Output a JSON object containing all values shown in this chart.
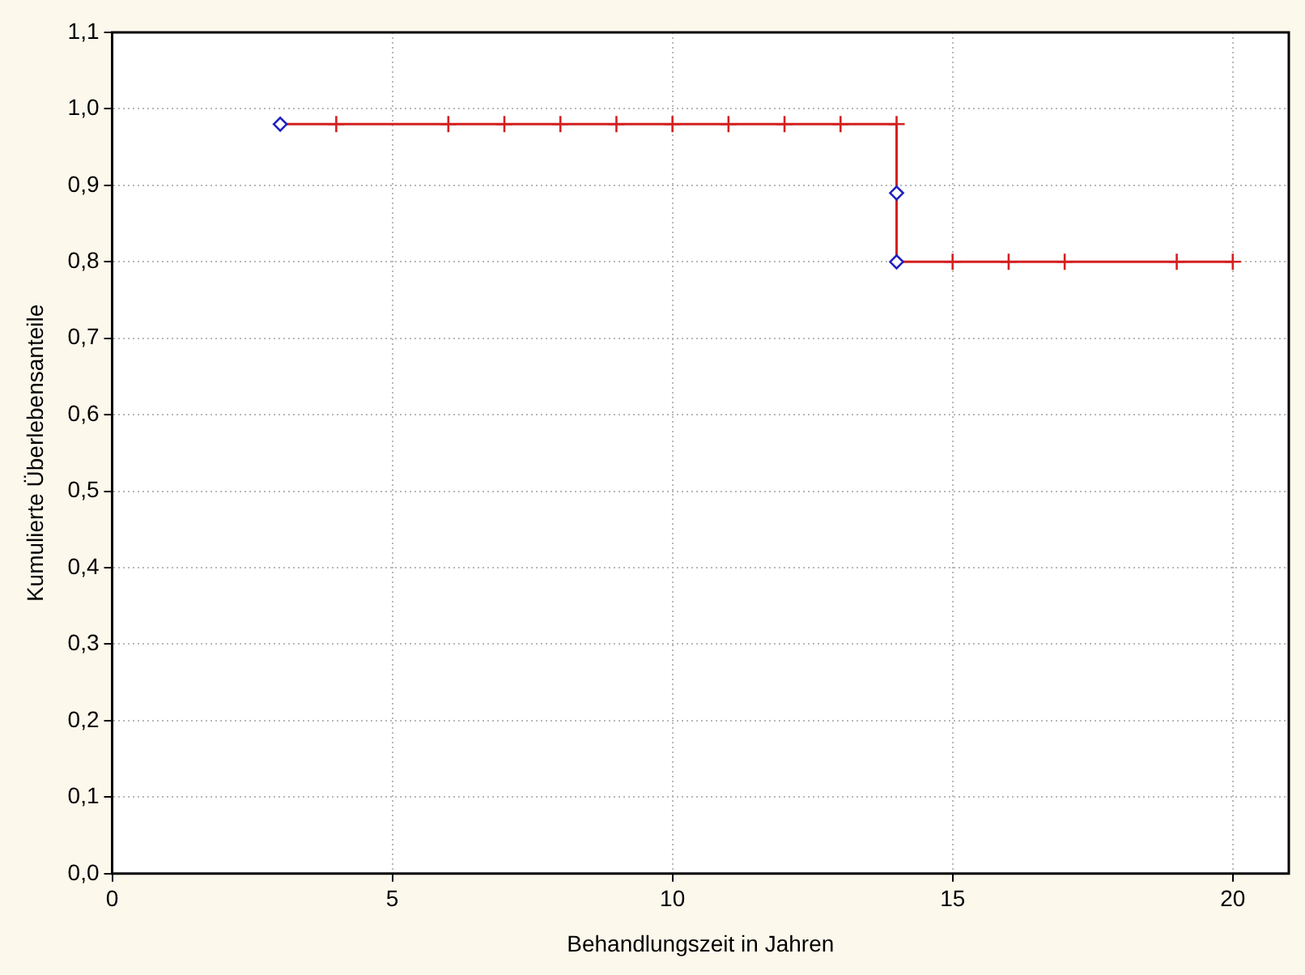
{
  "chart_data": {
    "type": "step",
    "xlabel": "Behandlungszeit in Jahren",
    "ylabel": "Kumulierte Überlebensanteile",
    "xlim": [
      0,
      21
    ],
    "xticks": [
      0,
      5,
      10,
      15,
      20
    ],
    "ylim": [
      0,
      1.1
    ],
    "yticks": [
      {
        "value": 0,
        "label": "0,0"
      },
      {
        "value": 0.1,
        "label": "0,1"
      },
      {
        "value": 0.2,
        "label": "0,2"
      },
      {
        "value": 0.3,
        "label": "0,3"
      },
      {
        "value": 0.4,
        "label": "0,4"
      },
      {
        "value": 0.5,
        "label": "0,5"
      },
      {
        "value": 0.6,
        "label": "0,6"
      },
      {
        "value": 0.7,
        "label": "0,7"
      },
      {
        "value": 0.8,
        "label": "0,8"
      },
      {
        "value": 0.9,
        "label": "0,9"
      },
      {
        "value": 1.0,
        "label": "1,0"
      },
      {
        "value": 1.1,
        "label": "1,1"
      }
    ],
    "grid": true,
    "legend": false,
    "line_style": "solid",
    "series": [
      {
        "type": "step",
        "color": "#d42020",
        "marker": "none",
        "x": [
          3,
          14,
          20
        ],
        "values": [
          0.98,
          0.8,
          0.8
        ]
      },
      {
        "type": "scatter",
        "color": "#d42020",
        "marker": "cross",
        "x": [
          4,
          6,
          7,
          8,
          9,
          10,
          11,
          12,
          13,
          14,
          15,
          16,
          17,
          19,
          20
        ],
        "values": [
          0.98,
          0.98,
          0.98,
          0.98,
          0.98,
          0.98,
          0.98,
          0.98,
          0.98,
          0.98,
          0.8,
          0.8,
          0.8,
          0.8,
          0.8
        ]
      },
      {
        "type": "scatter",
        "color": "#2020c0",
        "marker": "diamond",
        "x": [
          3,
          14,
          14
        ],
        "values": [
          0.98,
          0.89,
          0.8
        ]
      }
    ]
  }
}
